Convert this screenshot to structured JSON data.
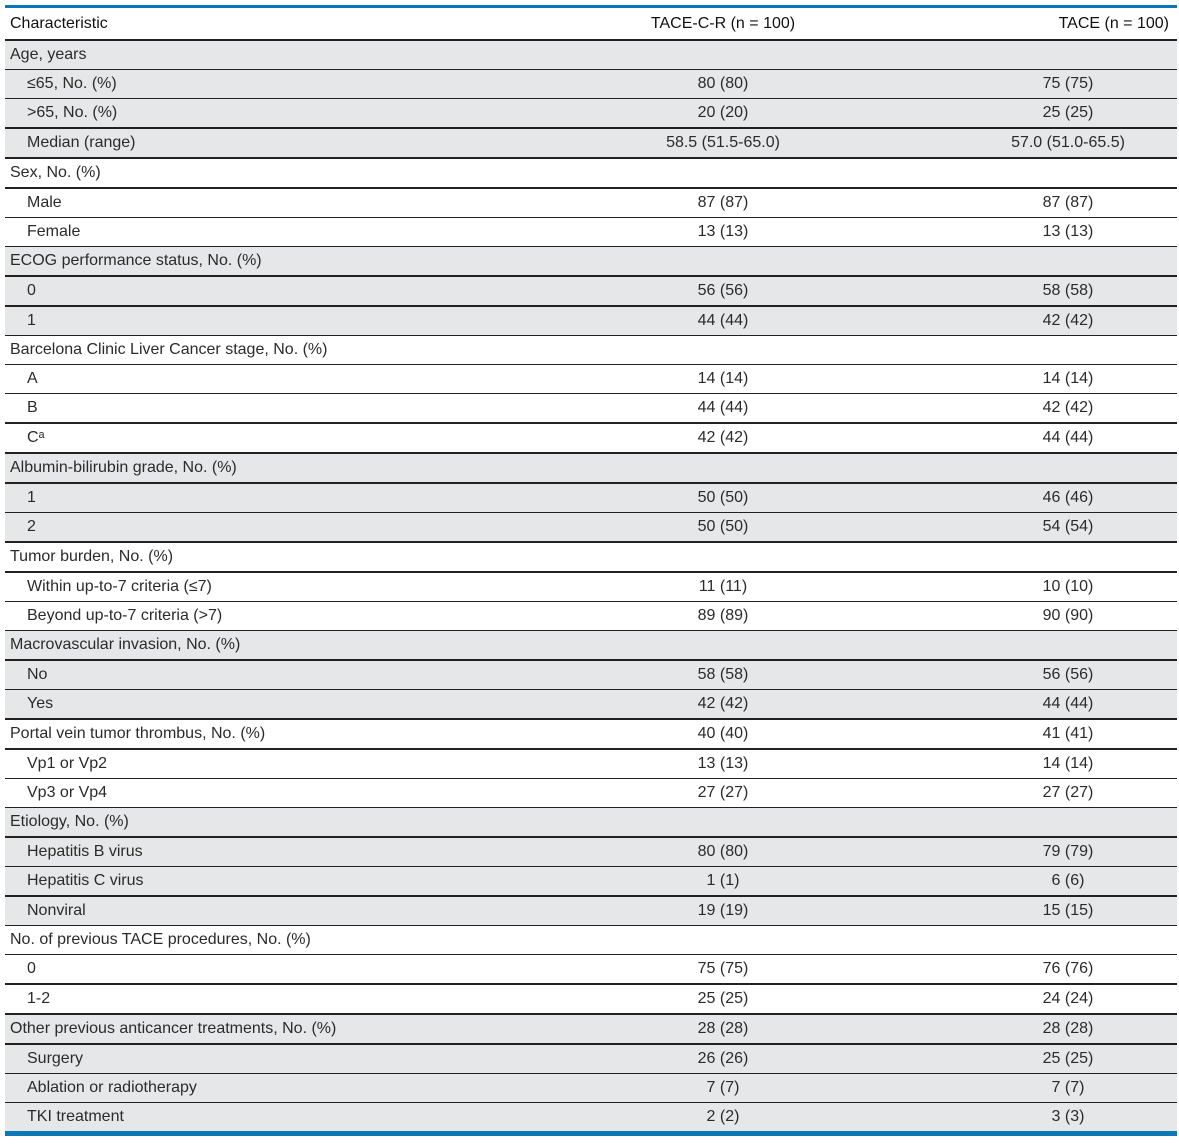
{
  "headers": [
    "Characteristic",
    "TACE-C-R (n = 100)",
    "TACE (n = 100)"
  ],
  "rows": [
    {
      "label": "Age, years",
      "a": "",
      "b": "",
      "sub": false,
      "grey": true,
      "end": false
    },
    {
      "label": "≤65, No. (%)",
      "a": "80 (80)",
      "b": "75 (75)",
      "sub": true,
      "grey": true,
      "end": false
    },
    {
      "label": ">65, No. (%)",
      "a": "20 (20)",
      "b": "25 (25)",
      "sub": true,
      "grey": true,
      "end": true
    },
    {
      "label": "Median (range)",
      "a": "58.5 (51.5-65.0)",
      "b": "57.0 (51.0-65.5)",
      "sub": true,
      "grey": true,
      "end": true
    },
    {
      "label": "Sex, No. (%)",
      "a": "",
      "b": "",
      "sub": false,
      "grey": false,
      "end": true
    },
    {
      "label": "Male",
      "a": "87 (87)",
      "b": "87 (87)",
      "sub": true,
      "grey": false,
      "end": false
    },
    {
      "label": "Female",
      "a": "13 (13)",
      "b": "13 (13)",
      "sub": true,
      "grey": false,
      "end": false
    },
    {
      "label": "ECOG performance status, No. (%)",
      "a": "",
      "b": "",
      "sub": false,
      "grey": true,
      "end": true
    },
    {
      "label": "0",
      "a": "56 (56)",
      "b": "58 (58)",
      "sub": true,
      "grey": true,
      "end": true
    },
    {
      "label": "1",
      "a": "44 (44)",
      "b": "42 (42)",
      "sub": true,
      "grey": true,
      "end": false
    },
    {
      "label": "Barcelona Clinic Liver Cancer stage, No. (%)",
      "a": "",
      "b": "",
      "sub": false,
      "grey": false,
      "end": false
    },
    {
      "label": "A",
      "a": "14 (14)",
      "b": "14 (14)",
      "sub": true,
      "grey": false,
      "end": false
    },
    {
      "label": "B",
      "a": "44 (44)",
      "b": "42 (42)",
      "sub": true,
      "grey": false,
      "end": true
    },
    {
      "label": "Cᵃ",
      "a": "42 (42)",
      "b": "44 (44)",
      "sub": true,
      "grey": false,
      "end": true
    },
    {
      "label": "Albumin-bilirubin grade, No. (%)",
      "a": "",
      "b": "",
      "sub": false,
      "grey": true,
      "end": true
    },
    {
      "label": "1",
      "a": "50 (50)",
      "b": "46 (46)",
      "sub": true,
      "grey": true,
      "end": false
    },
    {
      "label": "2",
      "a": "50 (50)",
      "b": "54 (54)",
      "sub": true,
      "grey": true,
      "end": true
    },
    {
      "label": "Tumor burden, No. (%)",
      "a": "",
      "b": "",
      "sub": false,
      "grey": false,
      "end": true
    },
    {
      "label": "Within up-to-7 criteria (≤7)",
      "a": "11 (11)",
      "b": "10 (10)",
      "sub": true,
      "grey": false,
      "end": false
    },
    {
      "label": "Beyond up-to-7 criteria (>7)",
      "a": "89 (89)",
      "b": "90 (90)",
      "sub": true,
      "grey": false,
      "end": false
    },
    {
      "label": "Macrovascular invasion, No. (%)",
      "a": "",
      "b": "",
      "sub": false,
      "grey": true,
      "end": true
    },
    {
      "label": "No",
      "a": "58 (58)",
      "b": "56 (56)",
      "sub": true,
      "grey": true,
      "end": false
    },
    {
      "label": "Yes",
      "a": "42 (42)",
      "b": "44 (44)",
      "sub": true,
      "grey": true,
      "end": true
    },
    {
      "label": "Portal vein tumor thrombus, No. (%)",
      "a": "40 (40)",
      "b": "41 (41)",
      "sub": false,
      "grey": false,
      "end": true
    },
    {
      "label": "Vp1 or Vp2",
      "a": "13 (13)",
      "b": "14 (14)",
      "sub": true,
      "grey": false,
      "end": false
    },
    {
      "label": "Vp3 or Vp4",
      "a": "27 (27)",
      "b": "27 (27)",
      "sub": true,
      "grey": false,
      "end": false
    },
    {
      "label": "Etiology, No. (%)",
      "a": "",
      "b": "",
      "sub": false,
      "grey": true,
      "end": true
    },
    {
      "label": "Hepatitis B virus",
      "a": "80 (80)",
      "b": "79 (79)",
      "sub": true,
      "grey": true,
      "end": false
    },
    {
      "label": "Hepatitis C virus",
      "a": "1 (1)",
      "b": "6 (6)",
      "sub": true,
      "grey": true,
      "end": true
    },
    {
      "label": "Nonviral",
      "a": "19 (19)",
      "b": "15 (15)",
      "sub": true,
      "grey": true,
      "end": false
    },
    {
      "label": "No. of previous TACE procedures, No. (%)",
      "a": "",
      "b": "",
      "sub": false,
      "grey": false,
      "end": false
    },
    {
      "label": "0",
      "a": "75 (75)",
      "b": "76 (76)",
      "sub": true,
      "grey": false,
      "end": true
    },
    {
      "label": "1-2",
      "a": "25 (25)",
      "b": "24 (24)",
      "sub": true,
      "grey": false,
      "end": true
    },
    {
      "label": "Other previous anticancer treatments, No. (%)",
      "a": "28 (28)",
      "b": "28 (28)",
      "sub": false,
      "grey": true,
      "end": true
    },
    {
      "label": "Surgery",
      "a": "26 (26)",
      "b": "25 (25)",
      "sub": true,
      "grey": true,
      "end": false
    },
    {
      "label": "Ablation or radiotherapy",
      "a": "7 (7)",
      "b": "7 (7)",
      "sub": true,
      "grey": true,
      "end": false
    },
    {
      "label": "TKI treatment",
      "a": "2 (2)",
      "b": "3 (3)",
      "sub": true,
      "grey": true,
      "end": false
    }
  ],
  "colors": {
    "accent": "#0b78b5",
    "grey_row": "#e6e7e8"
  }
}
